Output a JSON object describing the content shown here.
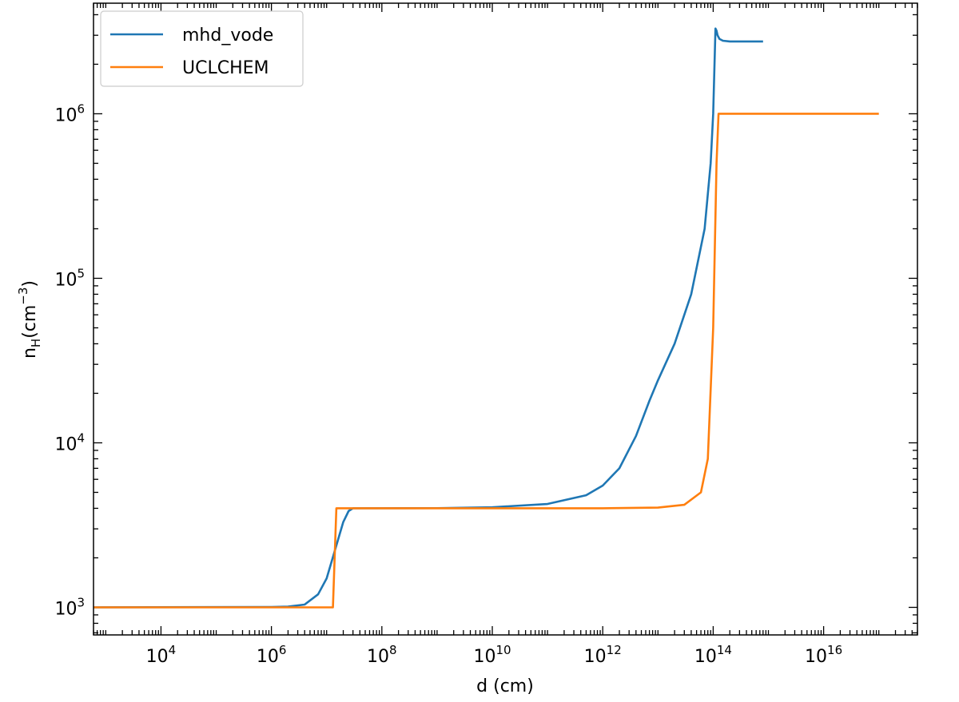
{
  "chart_data": {
    "type": "line",
    "xscale": "log",
    "yscale": "log",
    "xlim": [
      600,
      500000000000000000
    ],
    "ylim": [
      680,
      4700000
    ],
    "xlabel_main": "d (cm)",
    "ylabel_base": "n",
    "ylabel_sub": "H",
    "ylabel_unit": "(cm",
    "ylabel_exp": "−3",
    "ylabel_close": ")",
    "x_ticks": [
      {
        "base": "10",
        "exp": "4",
        "value": 10000
      },
      {
        "base": "10",
        "exp": "6",
        "value": 1000000
      },
      {
        "base": "10",
        "exp": "8",
        "value": 100000000
      },
      {
        "base": "10",
        "exp": "10",
        "value": 10000000000
      },
      {
        "base": "10",
        "exp": "12",
        "value": 1000000000000
      },
      {
        "base": "10",
        "exp": "14",
        "value": 100000000000000
      },
      {
        "base": "10",
        "exp": "16",
        "value": 10000000000000000
      }
    ],
    "y_ticks": [
      {
        "base": "10",
        "exp": "3",
        "value": 1000
      },
      {
        "base": "10",
        "exp": "4",
        "value": 10000
      },
      {
        "base": "10",
        "exp": "5",
        "value": 100000
      },
      {
        "base": "10",
        "exp": "6",
        "value": 1000000
      }
    ],
    "legend_position": "top-left",
    "series": [
      {
        "name": "mhd_vode",
        "color": "#1f77b4",
        "x": [
          600,
          1000000,
          2000000,
          4000000,
          7000000,
          10000000,
          14000000,
          20000000,
          25000000,
          30000000,
          1000000000,
          10000000000,
          100000000000,
          500000000000,
          1000000000000,
          2000000000000,
          4000000000000,
          7000000000000,
          10000000000000,
          20000000000000,
          40000000000000,
          70000000000000,
          90000000000000,
          100000000000000,
          110000000000000,
          115000000000000,
          120000000000000,
          130000000000000,
          150000000000000,
          200000000000000,
          400000000000000,
          800000000000000
        ],
        "y": [
          1000,
          1005,
          1010,
          1040,
          1200,
          1500,
          2200,
          3300,
          3850,
          4000,
          4010,
          4060,
          4250,
          4800,
          5500,
          7000,
          11000,
          18000,
          24000,
          40000,
          80000,
          200000,
          500000,
          1000000,
          3300000,
          3200000,
          3000000,
          2850000,
          2780000,
          2750000,
          2750000,
          2750000
        ]
      },
      {
        "name": "UCLCHEM",
        "color": "#ff7f0e",
        "x": [
          600,
          10000000,
          13000000,
          15000000,
          20000000,
          1000000000,
          10000000000,
          100000000000,
          1000000000000,
          10000000000000,
          30000000000000,
          60000000000000,
          80000000000000,
          100000000000000,
          115000000000000,
          125000000000000,
          130000000000000,
          140000000000000,
          1000000000000000,
          10000000000000000,
          100000000000000000
        ],
        "y": [
          1000,
          1000,
          1000,
          4000,
          4000,
          4000,
          4000,
          4000,
          4000,
          4040,
          4200,
          5000,
          8000,
          50000,
          500000,
          1000000,
          1000000,
          1000000,
          1000000,
          1000000,
          1000000
        ]
      }
    ]
  }
}
